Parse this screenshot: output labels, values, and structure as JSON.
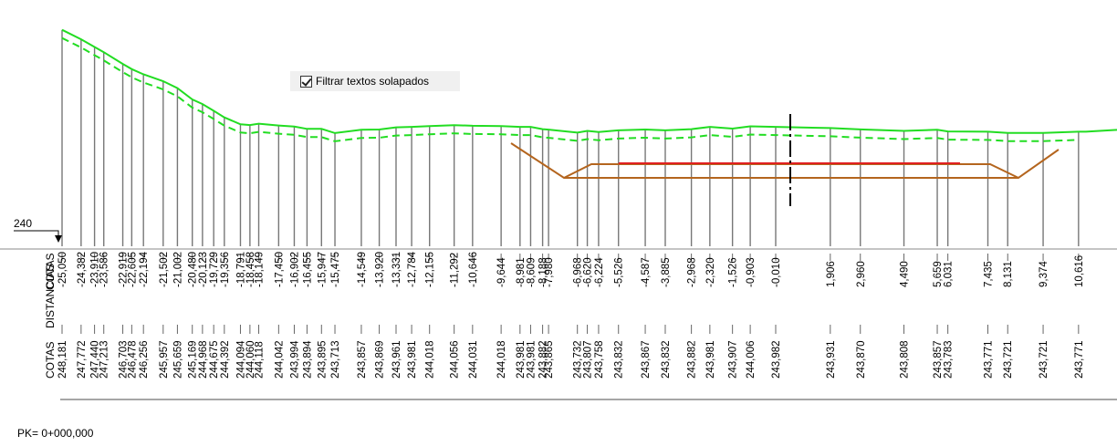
{
  "ui": {
    "filter_checkbox_label": "Filtrar textos solapados",
    "filter_checked": true,
    "pk_label": "PK= 0+000,000",
    "ref_elevation_label": "240",
    "row_label_distances": "DISTANCIAS",
    "row_label_cotas_top": "COTAS",
    "row_label_cotas_bottom": "COTAS"
  },
  "colors": {
    "terrain": "#22dd22",
    "stations": "#777777",
    "ditch": "#b4651e",
    "subgrade": "#e02020",
    "axis": "#000000"
  },
  "chart_data": {
    "type": "line",
    "title": "",
    "xlabel": "DISTANCIAS",
    "ylabel": "COTAS",
    "reference_elevation": 240,
    "stations": [
      {
        "d": "-25,050",
        "z": "248,181"
      },
      {
        "d": "-24,382",
        "z": "247,772"
      },
      {
        "d": "-23,910",
        "z": "247,440"
      },
      {
        "d": "-23,586",
        "z": "247,213"
      },
      {
        "d": "-22,919",
        "z": "246,703"
      },
      {
        "d": "-22,605",
        "z": "246,478"
      },
      {
        "d": "-22,194",
        "z": "246,256"
      },
      {
        "d": "-21,502",
        "z": "245,957"
      },
      {
        "d": "-21,002",
        "z": "245,659"
      },
      {
        "d": "-20,480",
        "z": "245,169"
      },
      {
        "d": "-20,123",
        "z": "244,968"
      },
      {
        "d": "-19,729",
        "z": "244,675"
      },
      {
        "d": "-19,356",
        "z": "244,392"
      },
      {
        "d": "-18,791",
        "z": "244,094"
      },
      {
        "d": "-18,458",
        "z": "244,060"
      },
      {
        "d": "-18,149",
        "z": "244,118"
      },
      {
        "d": "-17,450",
        "z": "244,042"
      },
      {
        "d": "-16,902",
        "z": "243,994"
      },
      {
        "d": "-16,455",
        "z": "243,894"
      },
      {
        "d": "-15,947",
        "z": "243,895"
      },
      {
        "d": "-15,475",
        "z": "243,713"
      },
      {
        "d": "-14,549",
        "z": "243,857"
      },
      {
        "d": "-13,920",
        "z": "243,869"
      },
      {
        "d": "-13,331",
        "z": "243,961"
      },
      {
        "d": "-12,784",
        "z": "243,981"
      },
      {
        "d": "-12,155",
        "z": "244,018"
      },
      {
        "d": "-11,292",
        "z": "244,056"
      },
      {
        "d": "-10,646",
        "z": "244,031"
      },
      {
        "d": "-9,644",
        "z": "244,018"
      },
      {
        "d": "-8,981",
        "z": "243,981"
      },
      {
        "d": "-8,609",
        "z": "243,981"
      },
      {
        "d": "-8,188",
        "z": "243,882"
      },
      {
        "d": "-7,980",
        "z": "243,865"
      },
      {
        "d": "-6,968",
        "z": "243,732"
      },
      {
        "d": "-6,620",
        "z": "243,807"
      },
      {
        "d": "-6,224",
        "z": "243,758"
      },
      {
        "d": "-5,526",
        "z": "243,832"
      },
      {
        "d": "-4,587",
        "z": "243,867"
      },
      {
        "d": "-3,885",
        "z": "243,832"
      },
      {
        "d": "-2,968",
        "z": "243,882"
      },
      {
        "d": "-2,320",
        "z": "243,981"
      },
      {
        "d": "-1,526",
        "z": "243,907"
      },
      {
        "d": "-0,903",
        "z": "244,006"
      },
      {
        "d": "-0,010",
        "z": "243,982"
      },
      {
        "d": "1,906",
        "z": "243,931"
      },
      {
        "d": "2,960",
        "z": "243,870"
      },
      {
        "d": "4,490",
        "z": "243,808"
      },
      {
        "d": "5,659",
        "z": "243,857"
      },
      {
        "d": "6,031",
        "z": "243,783"
      },
      {
        "d": "7,435",
        "z": "243,771"
      },
      {
        "d": "8,131",
        "z": "243,721"
      },
      {
        "d": "9,374",
        "z": "243,721"
      },
      {
        "d": "10,616",
        "z": "243,771"
      }
    ]
  }
}
